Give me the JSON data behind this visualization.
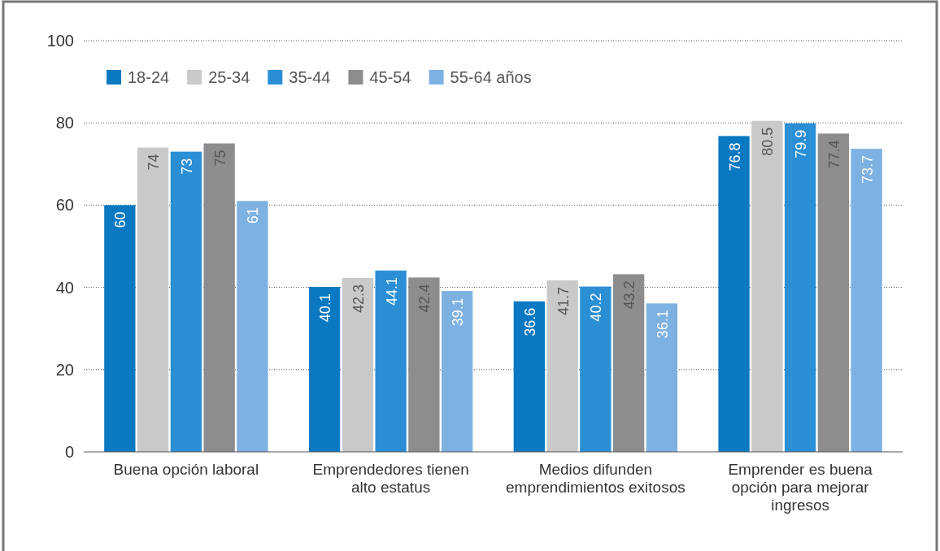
{
  "chart_data": {
    "type": "bar",
    "categories": [
      "Buena opción laboral",
      "Emprendedores tienen alto estatus",
      "Medios difunden emprendimientos exitosos",
      "Emprender es buena opción para mejorar ingresos"
    ],
    "series": [
      {
        "name": "18-24",
        "color": "#0a79c2",
        "values": [
          60,
          40.1,
          36.6,
          76.8
        ]
      },
      {
        "name": "25-34",
        "color": "#c9c9c9",
        "values": [
          74,
          42.3,
          41.7,
          80.5
        ]
      },
      {
        "name": "35-44",
        "color": "#2a8fd5",
        "values": [
          73,
          44.1,
          40.2,
          79.9
        ]
      },
      {
        "name": "45-54",
        "color": "#8d8d8f",
        "values": [
          75,
          42.4,
          43.2,
          77.4
        ]
      },
      {
        "name": "55-64 años",
        "color": "#7db1e1",
        "values": [
          61,
          39.1,
          36.1,
          73.7
        ]
      }
    ],
    "ylim": [
      0,
      100
    ],
    "yticks": [
      0,
      20,
      40,
      60,
      80,
      100
    ],
    "grid": "y",
    "legend": "top left",
    "data_labels": true
  }
}
